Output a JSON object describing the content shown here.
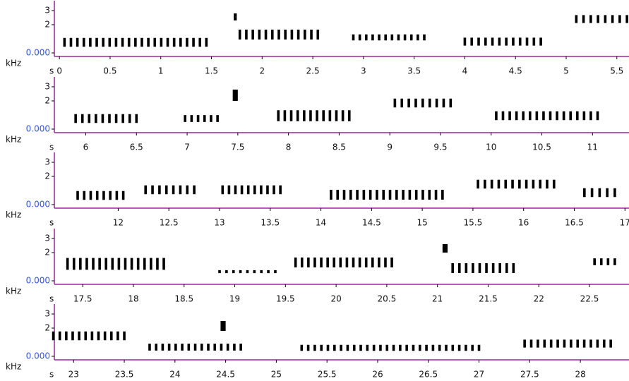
{
  "chart_data": [
    {
      "type": "spectrogram",
      "x_label": "s",
      "y_label": "kHz",
      "xlim": [
        -0.05,
        5.62
      ],
      "xticks": [
        0,
        0.5,
        1,
        1.5,
        2,
        2.5,
        3,
        3.5,
        4,
        4.5,
        5,
        5.5
      ],
      "ylim": [
        -0.25,
        3.5
      ],
      "yticks": [
        {
          "value": 0,
          "label": "0.000"
        },
        2,
        3
      ],
      "events": [
        [
          0.05,
          1.45,
          0.3,
          1.2
        ],
        [
          1.72,
          1.75,
          2.3,
          2.8
        ],
        [
          1.78,
          2.55,
          0.8,
          1.8
        ],
        [
          2.9,
          3.6,
          0.8,
          1.4
        ],
        [
          4.0,
          4.75,
          0.4,
          1.2
        ],
        [
          5.1,
          5.6,
          2.0,
          2.8
        ]
      ]
    },
    {
      "type": "spectrogram",
      "x_label": "s",
      "y_label": "kHz",
      "xlim": [
        5.69,
        11.36
      ],
      "xticks": [
        6,
        6.5,
        7,
        7.5,
        8,
        8.5,
        9,
        9.5,
        10,
        10.5,
        11
      ],
      "ylim": [
        -0.25,
        3.5
      ],
      "yticks": [
        {
          "value": 0,
          "label": "0.000"
        },
        2,
        3
      ],
      "events": [
        [
          5.9,
          6.5,
          0.3,
          1.2
        ],
        [
          6.98,
          7.3,
          0.4,
          1.1
        ],
        [
          7.45,
          7.5,
          2.0,
          2.8
        ],
        [
          7.9,
          8.6,
          0.4,
          1.5
        ],
        [
          9.05,
          9.6,
          1.4,
          2.3
        ],
        [
          10.05,
          11.05,
          0.5,
          1.4
        ]
      ]
    },
    {
      "type": "spectrogram",
      "x_label": "s",
      "y_label": "kHz",
      "xlim": [
        11.37,
        17.04
      ],
      "xticks": [
        12,
        12.5,
        13,
        13.5,
        14,
        14.5,
        15,
        15.5,
        16,
        16.5,
        17
      ],
      "ylim": [
        -0.25,
        3.5
      ],
      "yticks": [
        {
          "value": 0,
          "label": "0.000"
        },
        2,
        3
      ],
      "events": [
        [
          11.6,
          12.05,
          0.2,
          1.1
        ],
        [
          12.27,
          12.75,
          0.6,
          1.5
        ],
        [
          13.03,
          13.6,
          0.6,
          1.5
        ],
        [
          14.1,
          15.2,
          0.2,
          1.2
        ],
        [
          15.55,
          16.3,
          1.0,
          1.9
        ],
        [
          16.6,
          16.9,
          0.4,
          1.3
        ]
      ]
    },
    {
      "type": "spectrogram",
      "x_label": "s",
      "y_label": "kHz",
      "xlim": [
        17.22,
        22.89
      ],
      "xticks": [
        17.5,
        18,
        18.5,
        19,
        19.5,
        20,
        20.5,
        21,
        21.5,
        22,
        22.5
      ],
      "ylim": [
        -0.25,
        3.5
      ],
      "yticks": [
        {
          "value": 0,
          "label": "0.000"
        },
        2,
        3
      ],
      "events": [
        [
          17.35,
          18.3,
          0.6,
          1.8
        ],
        [
          18.85,
          19.4,
          0.5,
          0.8
        ],
        [
          19.6,
          20.55,
          0.8,
          1.8
        ],
        [
          21.05,
          21.1,
          2.0,
          2.6
        ],
        [
          21.15,
          21.75,
          0.4,
          1.4
        ],
        [
          22.55,
          22.75,
          1.0,
          1.7
        ]
      ]
    },
    {
      "type": "spectrogram",
      "x_label": "s",
      "y_label": "kHz",
      "xlim": [
        22.81,
        28.48
      ],
      "xticks": [
        23,
        23.5,
        24,
        24.5,
        25,
        25.5,
        26,
        26.5,
        27,
        27.5,
        28
      ],
      "ylim": [
        -0.25,
        3.5
      ],
      "yticks": [
        {
          "value": 0,
          "label": "0.000"
        },
        2,
        3
      ],
      "events": [
        [
          22.8,
          23.5,
          1.0,
          1.9
        ],
        [
          23.75,
          24.65,
          0.3,
          1.0
        ],
        [
          24.45,
          24.5,
          1.8,
          2.5
        ],
        [
          25.25,
          27.0,
          0.3,
          0.9
        ],
        [
          27.45,
          28.3,
          0.5,
          1.3
        ]
      ]
    }
  ]
}
